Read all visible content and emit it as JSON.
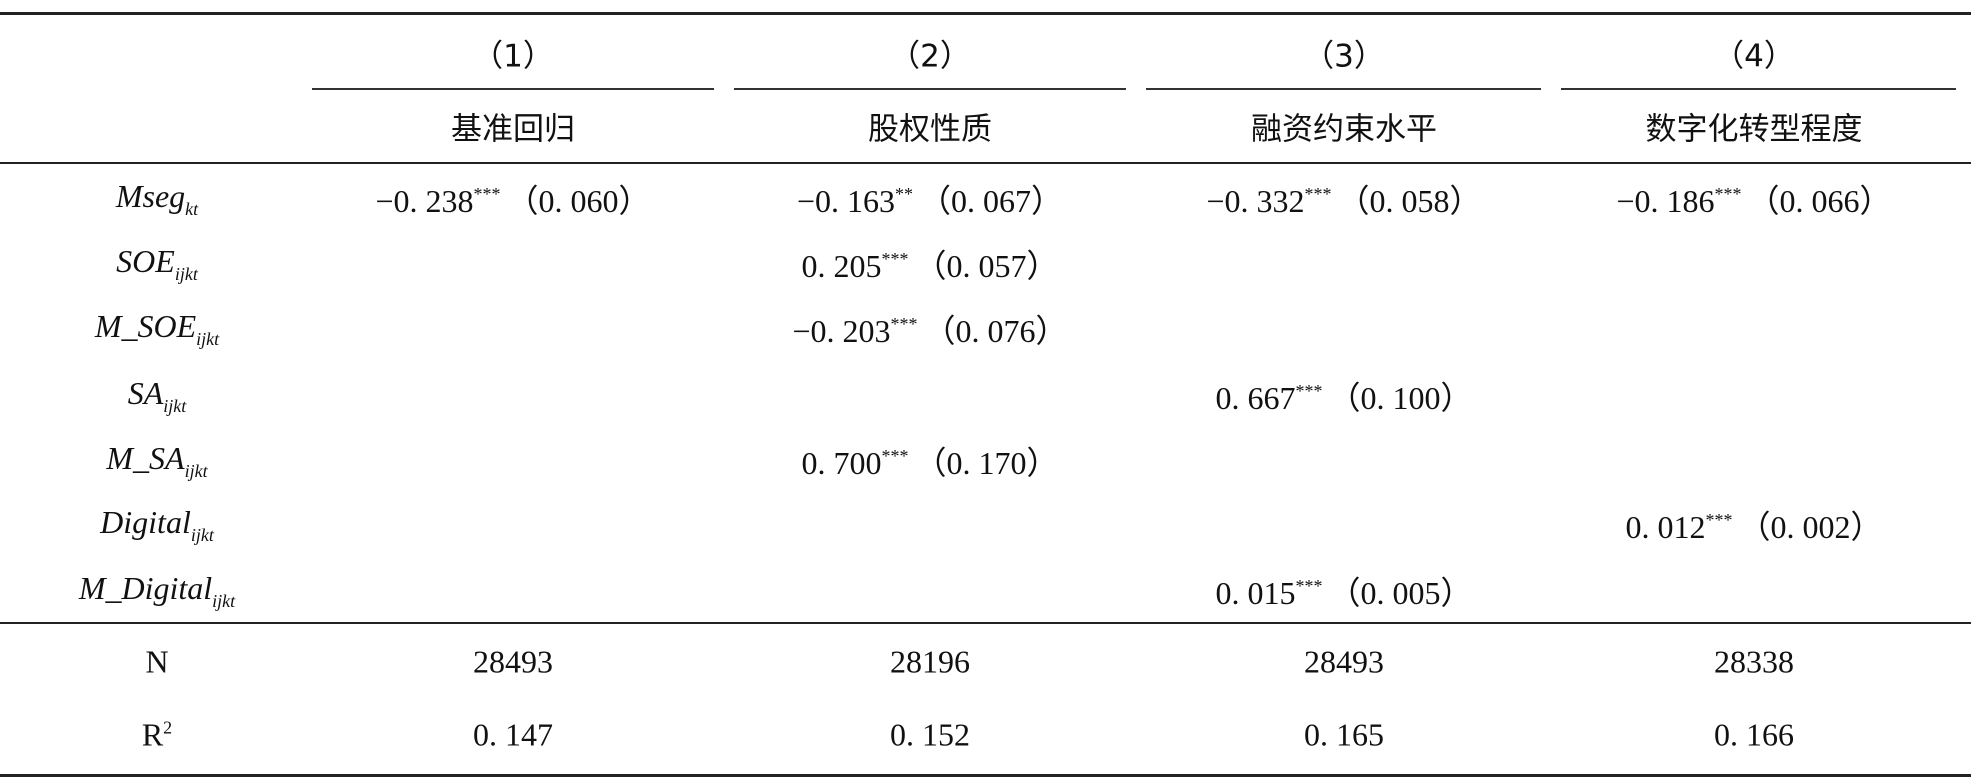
{
  "header": {
    "columns": [
      {
        "number": "（1）",
        "title": "基准回归"
      },
      {
        "number": "（2）",
        "title": "股权性质"
      },
      {
        "number": "（3）",
        "title": "融资约束水平"
      },
      {
        "number": "（4）",
        "title": "数字化转型程度"
      }
    ]
  },
  "rows": [
    {
      "label": {
        "base": "Mseg",
        "sub": "kt"
      },
      "cells": [
        {
          "coef": "−0. 238",
          "stars": "***",
          "se": "（0. 060）"
        },
        {
          "coef": "−0. 163",
          "stars": "**",
          "se": "（0. 067）"
        },
        {
          "coef": "−0. 332",
          "stars": "***",
          "se": "（0. 058）"
        },
        {
          "coef": "−0. 186",
          "stars": "***",
          "se": "（0. 066）"
        }
      ]
    },
    {
      "label": {
        "base": "SOE",
        "sub": "ijkt"
      },
      "cells": [
        null,
        {
          "coef": "0. 205",
          "stars": "***",
          "se": "（0. 057）"
        },
        null,
        null
      ]
    },
    {
      "label": {
        "base": "M_SOE",
        "sub": "ijkt"
      },
      "cells": [
        null,
        {
          "coef": "−0. 203",
          "stars": "***",
          "se": "（0. 076）"
        },
        null,
        null
      ]
    },
    {
      "label": {
        "base": "SA",
        "sub": "ijkt"
      },
      "cells": [
        null,
        null,
        {
          "coef": "0. 667",
          "stars": "***",
          "se": "（0. 100）"
        },
        null
      ]
    },
    {
      "label": {
        "base": "M_SA",
        "sub": "ijkt"
      },
      "cells": [
        null,
        {
          "coef": "0. 700",
          "stars": "***",
          "se": "（0. 170）"
        },
        null,
        null
      ]
    },
    {
      "label": {
        "base": "Digital",
        "sub": "ijkt"
      },
      "cells": [
        null,
        null,
        null,
        {
          "coef": "0. 012",
          "stars": "***",
          "se": "（0. 002）"
        }
      ]
    },
    {
      "label": {
        "base": "M_Digital",
        "sub": "ijkt"
      },
      "cells": [
        null,
        null,
        {
          "coef": "0. 015",
          "stars": "***",
          "se": "（0. 005）"
        },
        null
      ]
    }
  ],
  "stats": [
    {
      "label": {
        "base": "N"
      },
      "values": [
        "28493",
        "28196",
        "28493",
        "28338"
      ]
    },
    {
      "label": {
        "base": "R",
        "sup": "2"
      },
      "values": [
        "0. 147",
        "0. 152",
        "0. 165",
        "0. 166"
      ]
    }
  ]
}
